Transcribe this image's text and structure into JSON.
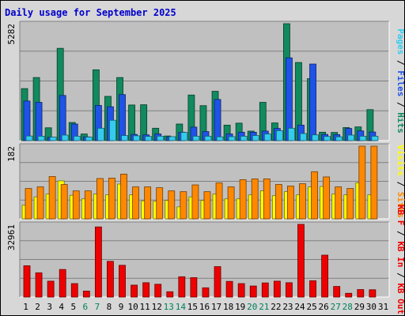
{
  "chart_data": {
    "type": "bar",
    "title": "Daily usage for September 2025",
    "categories": [
      "1",
      "2",
      "3",
      "4",
      "5",
      "6",
      "7",
      "8",
      "9",
      "10",
      "11",
      "12",
      "13",
      "14",
      "15",
      "16",
      "17",
      "18",
      "19",
      "20",
      "21",
      "22",
      "23",
      "24",
      "25",
      "26",
      "27",
      "28",
      "29",
      "30",
      "31"
    ],
    "weekend_days": [
      "6",
      "7",
      "13",
      "14",
      "20",
      "21",
      "27",
      "28"
    ],
    "panels": [
      {
        "id": "hits-files-pages",
        "max_label": "5282",
        "ylim": [
          0,
          5282
        ],
        "legend": [
          "Pages",
          "Files",
          "Hits"
        ],
        "series": [
          {
            "name": "Hits",
            "color": "#108a5e",
            "values": [
              2350,
              2850,
              580,
              4170,
              820,
              300,
              3200,
              2000,
              2850,
              1610,
              1620,
              560,
              210,
              750,
              2060,
              1580,
              2230,
              700,
              790,
              430,
              1730,
              800,
              5282,
              3530,
              2800,
              380,
              370,
              590,
              620,
              1400,
              0
            ]
          },
          {
            "name": "Files",
            "color": "#1f52e6",
            "values": [
              1790,
              1730,
              150,
              2040,
              750,
              170,
              1590,
              1530,
              2080,
              280,
              260,
              300,
              170,
              380,
              610,
              410,
              1860,
              300,
              380,
              380,
              430,
              550,
              3740,
              700,
              3460,
              280,
              270,
              550,
              440,
              390,
              0
            ]
          },
          {
            "name": "Pages",
            "color": "#33ccee",
            "values": [
              210,
              200,
              160,
              250,
              200,
              160,
              560,
              920,
              230,
              220,
              190,
              200,
              180,
              370,
              200,
              200,
              170,
              180,
              200,
              230,
              300,
              450,
              560,
              320,
              260,
              190,
              170,
              250,
              200,
              200,
              0
            ]
          }
        ]
      },
      {
        "id": "visits-sites",
        "max_label": "182",
        "ylim": [
          0,
          182
        ],
        "legend": [
          "Visits",
          "Sites"
        ],
        "series": [
          {
            "name": "Visits",
            "color": "#ffff00",
            "values": [
              34,
              55,
              62,
              95,
              59,
              50,
              62,
              60,
              87,
              60,
              45,
              44,
              46,
              30,
              55,
              46,
              62,
              50,
              50,
              60,
              70,
              58,
              68,
              60,
              80,
              81,
              62,
              60,
              90,
              60,
              0
            ]
          },
          {
            "name": "Sites",
            "color": "#ff8800",
            "values": [
              76,
              80,
              106,
              86,
              70,
              70,
              101,
              102,
              112,
              80,
              80,
              78,
              70,
              68,
              85,
              68,
              90,
              80,
              98,
              100,
              100,
              86,
              82,
              88,
              118,
              105,
              80,
              76,
              182,
              182,
              0
            ]
          }
        ]
      },
      {
        "id": "kbytes",
        "max_label": "32961",
        "ylim": [
          0,
          32961
        ],
        "legend": [
          "KB F",
          "KB In",
          "KB Out"
        ],
        "series": [
          {
            "name": "KB F",
            "color": "#ee0000",
            "values": [
              14200,
              11000,
              7200,
              12500,
              6100,
              2700,
              31800,
              16200,
              14400,
              5400,
              6500,
              5800,
              2400,
              9200,
              8800,
              4200,
              13800,
              7100,
              6100,
              5000,
              6400,
              7200,
              6500,
              32961,
              7400,
              19000,
              4800,
              1700,
              3400,
              3300,
              0
            ]
          }
        ]
      }
    ]
  }
}
